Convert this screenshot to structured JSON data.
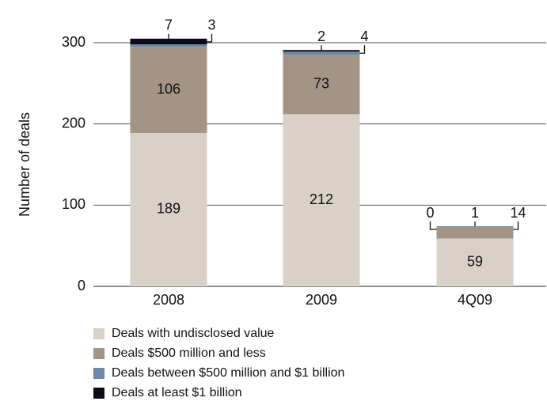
{
  "chart_data": {
    "type": "stacked-bar",
    "y_label": "Number of deals",
    "categories": [
      "2008",
      "2009",
      "4Q09"
    ],
    "series": [
      {
        "name": "Deals with undisclosed value",
        "color": "#d9d0c7",
        "values": [
          189,
          212,
          59
        ]
      },
      {
        "name": "Deals $500 million and less",
        "color": "#a39486",
        "values": [
          106,
          73,
          14
        ]
      },
      {
        "name": "Deals between $500 million and $1 billion",
        "color": "#6a8aa6",
        "values": [
          3,
          4,
          1
        ]
      },
      {
        "name": "Deals at least $1 billion",
        "color": "#0b0b1a",
        "values": [
          7,
          2,
          0
        ]
      }
    ],
    "ylim": [
      0,
      300
    ],
    "yticks": [
      0,
      100,
      200,
      300
    ],
    "grid": true
  }
}
